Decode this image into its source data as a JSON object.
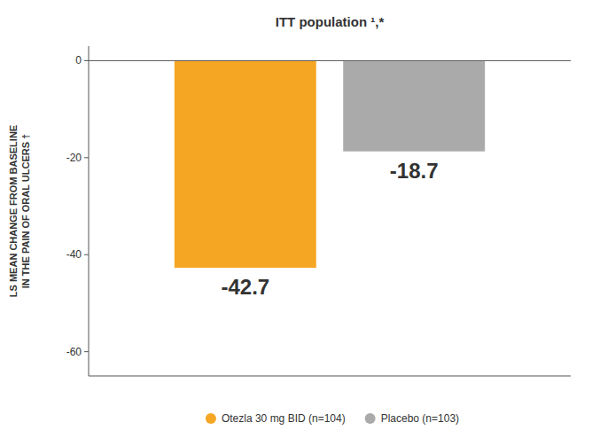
{
  "chart_data": {
    "type": "bar",
    "title": "ITT population ¹,*",
    "ylabel": "LS MEAN CHANGE FROM BASELINE\nIN THE PAIN OF ORAL ULCERS †",
    "categories": [
      null
    ],
    "series": [
      {
        "name": "Otezla 30 mg BID (n=104)",
        "color": "#F5A623",
        "values": [
          -42.7
        ]
      },
      {
        "name": "Placebo (n=103)",
        "color": "#AAAAAA",
        "values": [
          -18.7
        ]
      }
    ],
    "ylim": [
      -65,
      3
    ],
    "yticks": [
      0,
      -20,
      -40,
      -60
    ],
    "grid": false,
    "legend": "bottom",
    "data_labels": true
  }
}
